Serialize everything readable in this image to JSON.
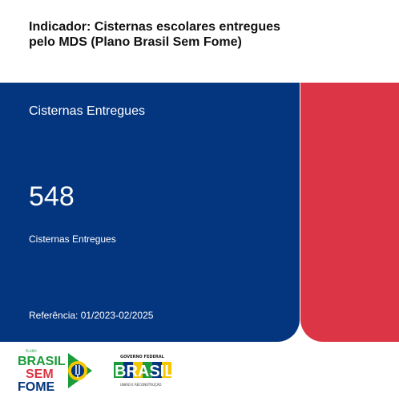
{
  "header": {
    "title": "Indicador: Cisternas escolares entregues pelo MDS (Plano Brasil Sem Fome)"
  },
  "card": {
    "title": "Cisternas Entregues",
    "value": "548",
    "value_label": "Cisternas Entregues",
    "reference": "Referência: 01/2023-02/2025"
  },
  "footer": {
    "logo_brasil_sem_fome": {
      "line1": "BRASIL",
      "line2": "SEM",
      "line3": "FOME",
      "small": "PLANO"
    },
    "logo_governo": {
      "top": "GOVERNO FEDERAL",
      "main": "BRASIL",
      "bottom": "UNIÃO E RECONSTRUÇÃO"
    }
  },
  "colors": {
    "blue": "#04357f",
    "red": "#dc3545",
    "green": "#1b9b3a",
    "yellow": "#f6c700"
  }
}
